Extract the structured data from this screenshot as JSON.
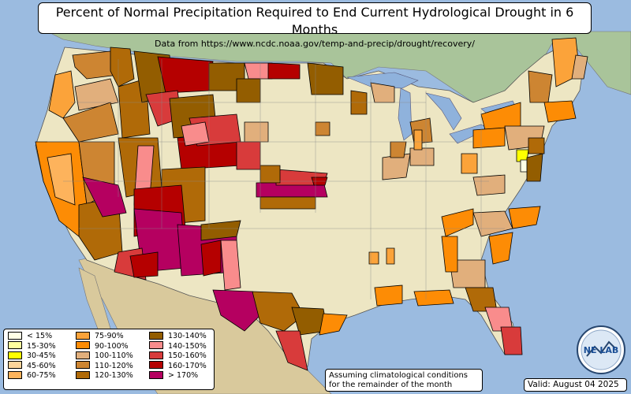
{
  "title": "Percent of Normal Precipitation Required to End Current Hydrological Drought in 6 Months",
  "subtitle": "Data from https://www.ncdc.noaa.gov/temp-and-precip/drought/recovery/",
  "legend": [
    {
      "label": "< 15%",
      "color": "#ffffe6"
    },
    {
      "label": "15-30%",
      "color": "#ffff9e"
    },
    {
      "label": "30-45%",
      "color": "#ffff00"
    },
    {
      "label": "45-60%",
      "color": "#fcd49a"
    },
    {
      "label": "60-75%",
      "color": "#fdb35c"
    },
    {
      "label": "75-90%",
      "color": "#fba33a"
    },
    {
      "label": "90-100%",
      "color": "#fd8c05"
    },
    {
      "label": "100-110%",
      "color": "#e1af7c"
    },
    {
      "label": "110-120%",
      "color": "#cd8532"
    },
    {
      "label": "120-130%",
      "color": "#b06a08"
    },
    {
      "label": "130-140%",
      "color": "#935d00"
    },
    {
      "label": "140-150%",
      "color": "#f98c8c"
    },
    {
      "label": "150-160%",
      "color": "#d83b3b"
    },
    {
      "label": "160-170%",
      "color": "#b50000"
    },
    {
      "label": "> 170%",
      "color": "#b50060"
    }
  ],
  "note_line1": "Assuming climatological conditions",
  "note_line2": "for the remainder of the month",
  "valid": "Valid: August 04 2025",
  "logo_text": "NE LAB",
  "colors": {
    "ocean": "#9bbbe0",
    "land": "#ede6c3",
    "canada": "#a9c49a",
    "mexico": "#d9c99c",
    "lakes": "#8fb2dc"
  }
}
